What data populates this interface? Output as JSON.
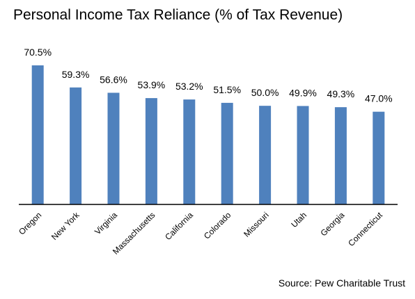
{
  "chart_data": {
    "type": "bar",
    "title": "Personal Income Tax Reliance (% of Tax Revenue)",
    "xlabel": "",
    "ylabel": "",
    "categories": [
      "Oregon",
      "New York",
      "Virginia",
      "Massachusetts",
      "California",
      "Colorado",
      "Missouri",
      "Utah",
      "Georgia",
      "Connecticut"
    ],
    "values": [
      70.5,
      59.3,
      56.6,
      53.9,
      53.2,
      51.5,
      50.0,
      49.9,
      49.3,
      47.0
    ],
    "data_labels": [
      "70.5%",
      "59.3%",
      "56.6%",
      "53.9%",
      "53.2%",
      "51.5%",
      "50.0%",
      "49.9%",
      "49.3%",
      "47.0%"
    ],
    "ylim": [
      0,
      70.5
    ],
    "grid": false,
    "legend": "none",
    "bar_color": "#4F81BD",
    "axis_color": "#000000"
  },
  "source": "Source: Pew Charitable Trust"
}
